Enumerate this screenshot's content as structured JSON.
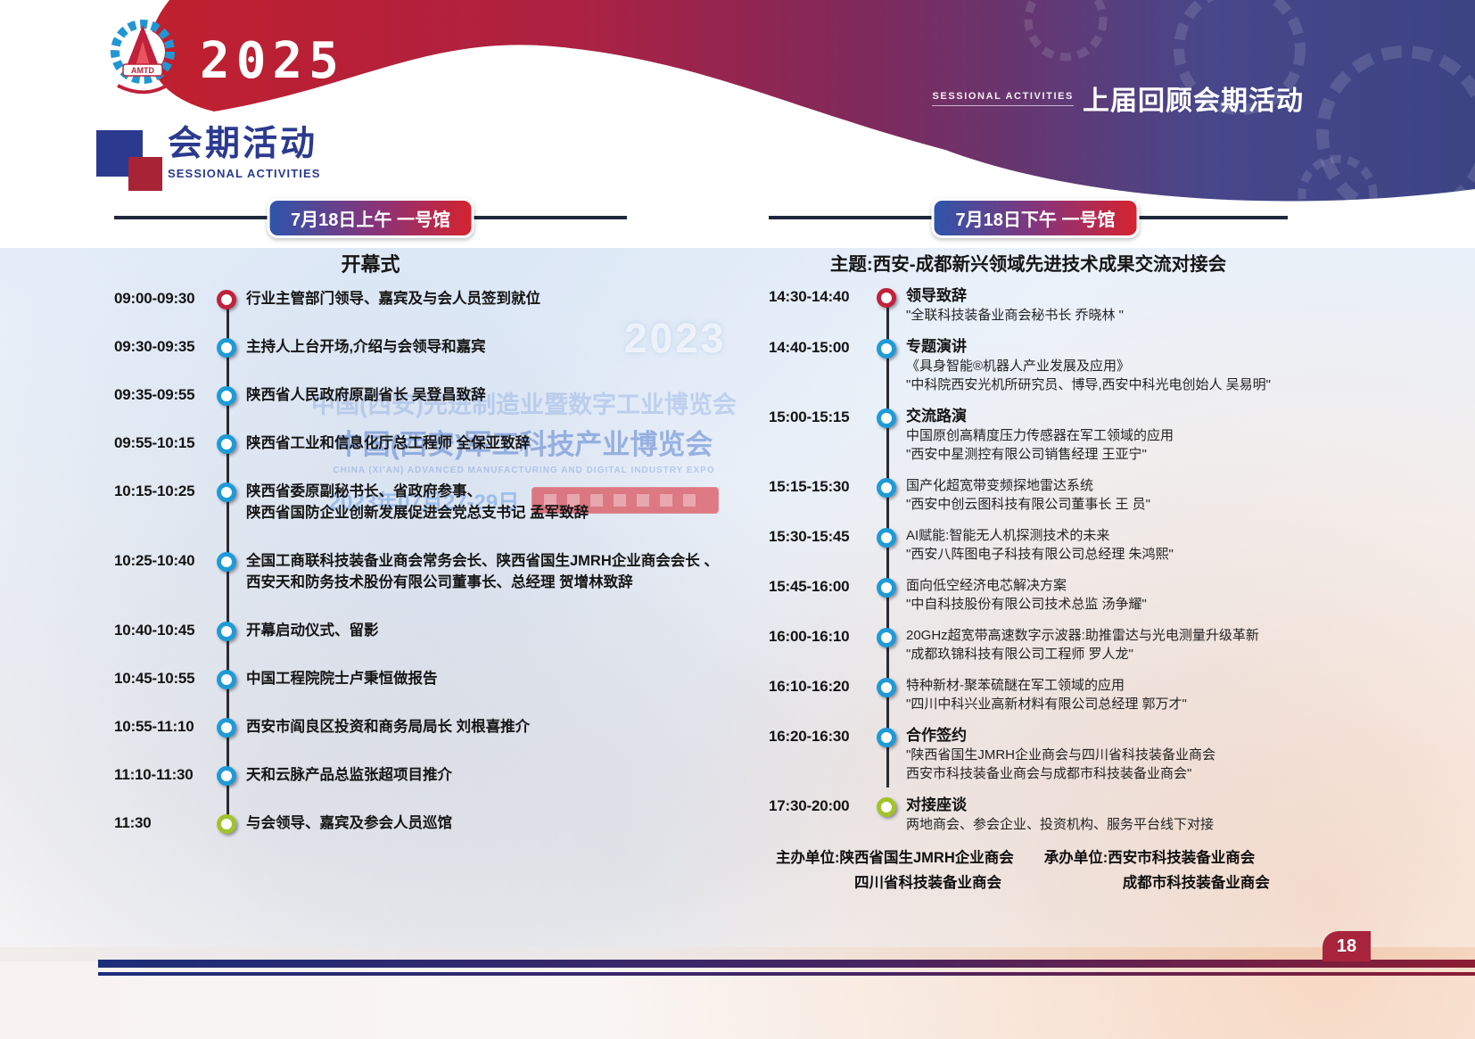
{
  "page": {
    "year": "2025",
    "logo_text": "AMTD",
    "header_right_small": "SESSIONAL ACTIVITIES",
    "header_right_title": "上届回顾会期活动",
    "section_title": "会期活动",
    "section_subtitle": "SESSIONAL ACTIVITIES",
    "page_number": "18"
  },
  "watermark": {
    "line1": "中国(西安)先进制造业暨数字工业博览会",
    "line2": "中国(西安)军工科技产业博览会",
    "english": "CHINA (XI'AN) ADVANCED MANUFACTURING AND DIGITAL INDUSTRY EXPO",
    "date": "2023年07月27-29日",
    "big_year": "2023"
  },
  "left_column": {
    "badge": "7月18日上午 一号馆",
    "title": "开幕式",
    "items": [
      {
        "time": "09:00-09:30",
        "marker": "red",
        "lines": [
          "行业主管部门领导、嘉宾及与会人员签到就位"
        ]
      },
      {
        "time": "09:30-09:35",
        "marker": "blue",
        "lines": [
          "主持人上台开场,介绍与会领导和嘉宾"
        ]
      },
      {
        "time": "09:35-09:55",
        "marker": "blue",
        "lines": [
          "陕西省人民政府原副省长 吴登昌致辞"
        ]
      },
      {
        "time": "09:55-10:15",
        "marker": "blue",
        "lines": [
          "陕西省工业和信息化厅总工程师 全保亚致辞"
        ]
      },
      {
        "time": "10:15-10:25",
        "marker": "blue",
        "lines": [
          "陕西省委原副秘书长、省政府参事、",
          "陕西省国防企业创新发展促进会党总支书记 孟军致辞"
        ]
      },
      {
        "time": "10:25-10:40",
        "marker": "blue",
        "lines": [
          "全国工商联科技装备业商会常务会长、陕西省国生JMRH企业商会会长 、",
          "西安天和防务技术股份有限公司董事长、总经理 贺增林致辞"
        ]
      },
      {
        "time": "10:40-10:45",
        "marker": "blue",
        "lines": [
          "开幕启动仪式、留影"
        ]
      },
      {
        "time": "10:45-10:55",
        "marker": "blue",
        "lines": [
          "中国工程院院士卢秉恒做报告"
        ]
      },
      {
        "time": "10:55-11:10",
        "marker": "blue",
        "lines": [
          "西安市阎良区投资和商务局局长 刘根喜推介"
        ]
      },
      {
        "time": "11:10-11:30",
        "marker": "blue",
        "lines": [
          "天和云脉产品总监张超项目推介"
        ]
      },
      {
        "time": "11:30",
        "marker": "green",
        "lines": [
          "与会领导、嘉宾及参会人员巡馆"
        ]
      }
    ]
  },
  "right_column": {
    "badge": "7月18日下午 一号馆",
    "title": "主题:西安-成都新兴领域先进技术成果交流对接会",
    "items": [
      {
        "time": "14:30-14:40",
        "marker": "red",
        "title": "领导致辞",
        "lines": [
          "\"全联科技装备业商会秘书长 乔晓林 \""
        ]
      },
      {
        "time": "14:40-15:00",
        "marker": "blue",
        "title": "专题演讲",
        "lines": [
          "《具身智能®机器人产业发展及应用》",
          "\"中科院西安光机所研究员、博导,西安中科光电创始人 吴易明\""
        ]
      },
      {
        "time": "15:00-15:15",
        "marker": "blue",
        "title": "交流路演",
        "lines": [
          "中国原创高精度压力传感器在军工领域的应用",
          "\"西安中星测控有限公司销售经理 王亚宁\""
        ]
      },
      {
        "time": "15:15-15:30",
        "marker": "blue",
        "title": "",
        "lines": [
          "国产化超宽带变频探地雷达系统",
          "\"西安中创云图科技有限公司董事长 王 员\""
        ]
      },
      {
        "time": "15:30-15:45",
        "marker": "blue",
        "title": "",
        "lines": [
          "AI赋能:智能无人机探测技术的未来",
          "\"西安八阵图电子科技有限公司总经理 朱鸿熙\""
        ]
      },
      {
        "time": "15:45-16:00",
        "marker": "blue",
        "title": "",
        "lines": [
          "面向低空经济电芯解决方案",
          "\"中自科技股份有限公司技术总监 汤争耀\""
        ]
      },
      {
        "time": "16:00-16:10",
        "marker": "blue",
        "title": "",
        "lines": [
          "20GHz超宽带高速数字示波器:助推雷达与光电测量升级革新",
          "\"成都玖锦科技有限公司工程师 罗人龙\""
        ]
      },
      {
        "time": "16:10-16:20",
        "marker": "blue",
        "title": "",
        "lines": [
          "特种新材-聚苯硫醚在军工领域的应用",
          "\"四川中科兴业高新材料有限公司总经理 郭万才\""
        ]
      },
      {
        "time": "16:20-16:30",
        "marker": "blue",
        "title": "合作签约",
        "lines": [
          "\"陕西省国生JMRH企业商会与四川省科技装备业商会",
          "西安市科技装备业商会与成都市科技装备业商会\""
        ]
      },
      {
        "time": "17:30-20:00",
        "marker": "green",
        "title": "对接座谈",
        "lines": [
          "两地商会、参会企业、投资机构、服务平台线下对接"
        ]
      }
    ],
    "organizers": {
      "host_label": "主办单位:",
      "host_name1": "陕西省国生JMRH企业商会",
      "host_name2": "四川省科技装备业商会",
      "undertaker_label": "承办单位:",
      "undertaker_name1": "西安市科技装备业商会",
      "undertaker_name2": "成都市科技装备业商会"
    }
  }
}
